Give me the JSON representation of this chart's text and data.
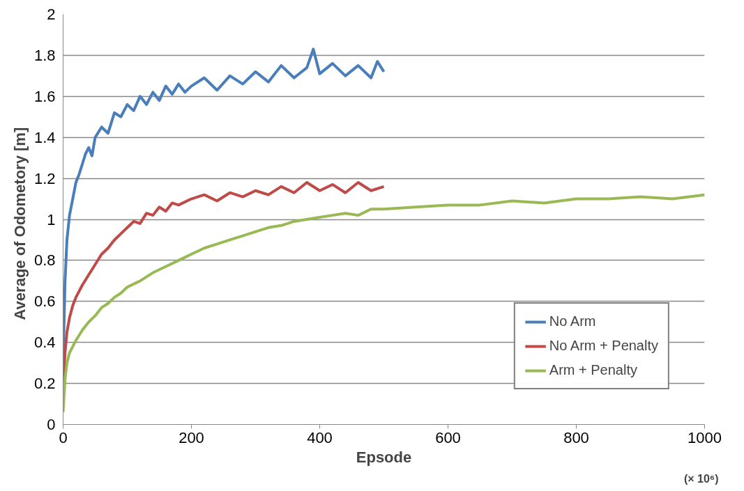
{
  "chart_data": {
    "type": "line",
    "xlabel": "Epsode",
    "ylabel": "Average  of  Odometory [m]",
    "annotations": [
      "(× 10⁶)"
    ],
    "xlim": [
      0,
      1000
    ],
    "ylim": [
      0,
      2
    ],
    "xticks": [
      0,
      200,
      400,
      600,
      800,
      1000
    ],
    "yticks": [
      0,
      0.2,
      0.4,
      0.6,
      0.8,
      1,
      1.2,
      1.4,
      1.6,
      1.8,
      2
    ],
    "grid": "y",
    "legend": "bottom right",
    "line_style": "solid",
    "marker": "none",
    "series": [
      {
        "name": "No Arm",
        "color": "#4a7ebb",
        "x": [
          0,
          3,
          6,
          10,
          15,
          20,
          25,
          30,
          35,
          40,
          45,
          50,
          60,
          70,
          80,
          90,
          100,
          110,
          120,
          130,
          140,
          150,
          160,
          170,
          180,
          190,
          200,
          220,
          240,
          260,
          280,
          300,
          320,
          340,
          360,
          380,
          390,
          400,
          420,
          440,
          460,
          480,
          490,
          500
        ],
        "values": [
          0.3,
          0.7,
          0.9,
          1.02,
          1.1,
          1.18,
          1.22,
          1.27,
          1.32,
          1.35,
          1.31,
          1.4,
          1.45,
          1.42,
          1.52,
          1.5,
          1.56,
          1.53,
          1.6,
          1.56,
          1.62,
          1.58,
          1.65,
          1.61,
          1.66,
          1.62,
          1.65,
          1.69,
          1.63,
          1.7,
          1.66,
          1.72,
          1.67,
          1.75,
          1.69,
          1.74,
          1.83,
          1.71,
          1.76,
          1.7,
          1.75,
          1.69,
          1.77,
          1.72
        ]
      },
      {
        "name": "No Arm + Penalty",
        "color": "#be4b48",
        "x": [
          0,
          3,
          6,
          10,
          15,
          20,
          30,
          40,
          50,
          60,
          70,
          80,
          90,
          100,
          110,
          120,
          130,
          140,
          150,
          160,
          170,
          180,
          200,
          220,
          240,
          260,
          280,
          300,
          320,
          340,
          360,
          380,
          400,
          420,
          440,
          460,
          480,
          500
        ],
        "values": [
          0.2,
          0.35,
          0.45,
          0.52,
          0.58,
          0.62,
          0.68,
          0.73,
          0.78,
          0.83,
          0.86,
          0.9,
          0.93,
          0.96,
          0.99,
          0.98,
          1.03,
          1.02,
          1.06,
          1.04,
          1.08,
          1.07,
          1.1,
          1.12,
          1.09,
          1.13,
          1.11,
          1.14,
          1.12,
          1.16,
          1.13,
          1.18,
          1.14,
          1.17,
          1.13,
          1.18,
          1.14,
          1.16
        ]
      },
      {
        "name": "Arm + Penalty",
        "color": "#98b954",
        "x": [
          0,
          3,
          6,
          10,
          15,
          20,
          30,
          40,
          50,
          60,
          70,
          80,
          90,
          100,
          120,
          140,
          160,
          180,
          200,
          220,
          240,
          260,
          280,
          300,
          320,
          340,
          360,
          380,
          400,
          420,
          440,
          460,
          480,
          500,
          550,
          600,
          650,
          700,
          750,
          800,
          850,
          900,
          950,
          1000
        ],
        "values": [
          0.06,
          0.22,
          0.3,
          0.35,
          0.38,
          0.41,
          0.46,
          0.5,
          0.53,
          0.57,
          0.59,
          0.62,
          0.64,
          0.67,
          0.7,
          0.74,
          0.77,
          0.8,
          0.83,
          0.86,
          0.88,
          0.9,
          0.92,
          0.94,
          0.96,
          0.97,
          0.99,
          1.0,
          1.01,
          1.02,
          1.03,
          1.02,
          1.05,
          1.05,
          1.06,
          1.07,
          1.07,
          1.09,
          1.08,
          1.1,
          1.1,
          1.11,
          1.1,
          1.12
        ]
      }
    ]
  }
}
